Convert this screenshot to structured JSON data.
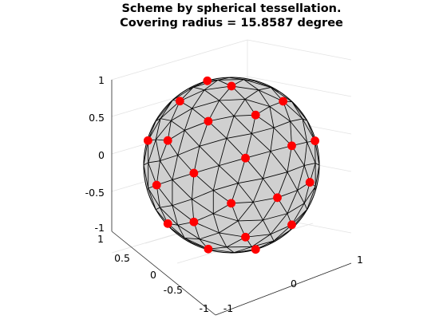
{
  "figure": {
    "title_line1": "Scheme by spherical tessellation.",
    "title_line2": "Covering radius = 15.8587 degree"
  },
  "axes": {
    "z_ticks": [
      "1",
      "0.5",
      "0",
      "-0.5",
      "-1"
    ],
    "y_ticks": [
      "1",
      "0.5",
      "0",
      "-0.5",
      "-1"
    ],
    "x_ticks": [
      "-1",
      "0",
      "1"
    ]
  },
  "colors": {
    "sphere_fill": "#d0d0d0",
    "mesh_edges": "#000000",
    "points": "#ff0000",
    "axes": "#262626",
    "grid": "#e3e3e3",
    "background": "#ffffff"
  },
  "sphere": {
    "geodesic_frequency": 4,
    "point_marker": "filled-circle"
  }
}
